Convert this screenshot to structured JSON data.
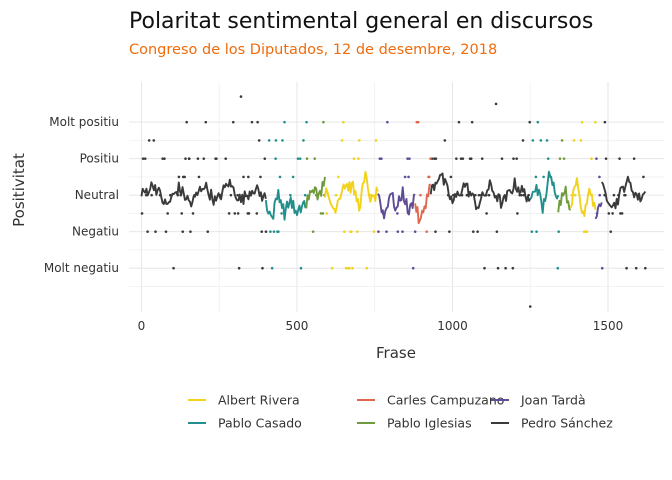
{
  "chart_data": {
    "type": "line",
    "title": "Polaritat sentimental general en discursos",
    "subtitle": "Congreso de los Diputados, 12 de desembre, 2018",
    "xlabel": "Frase",
    "ylabel": "Positivitat",
    "xlim": [
      -40,
      1680
    ],
    "ylim": [
      -3.2,
      3.1
    ],
    "x_ticks": [
      0,
      500,
      1000,
      1500
    ],
    "y_ticks": [
      {
        "value": 2,
        "label": "Molt positiu"
      },
      {
        "value": 1,
        "label": "Positiu"
      },
      {
        "value": 0,
        "label": "Neutral"
      },
      {
        "value": -1,
        "label": "Negatiu"
      },
      {
        "value": -2,
        "label": "Molt negatiu"
      }
    ],
    "grid": true,
    "legend_position": "bottom",
    "legend_entries": [
      "Albert Rivera",
      "Carles Campuzano",
      "Joan Tardà",
      "Pablo Casado",
      "Pablo Iglesias",
      "Pedro Sánchez"
    ],
    "series": [
      {
        "name": "Pedro Sánchez",
        "color": "#3a3a3a",
        "segments": [
          [
            0,
            400
          ],
          [
            930,
            1250
          ],
          [
            1480,
            1620
          ]
        ],
        "moving_average": [
          [
            0,
            0
          ],
          [
            40,
            0.3
          ],
          [
            80,
            -0.3
          ],
          [
            120,
            0.2
          ],
          [
            160,
            -0.25
          ],
          [
            200,
            0.3
          ],
          [
            240,
            -0.2
          ],
          [
            280,
            0.35
          ],
          [
            320,
            -0.15
          ],
          [
            360,
            0.2
          ],
          [
            400,
            -0.1
          ],
          [
            930,
            0.1
          ],
          [
            960,
            0.6
          ],
          [
            1000,
            -0.2
          ],
          [
            1040,
            0.3
          ],
          [
            1080,
            -0.3
          ],
          [
            1120,
            0.25
          ],
          [
            1160,
            -0.25
          ],
          [
            1200,
            0.3
          ],
          [
            1250,
            -0.1
          ],
          [
            1480,
            0.2
          ],
          [
            1520,
            -0.3
          ],
          [
            1560,
            0.4
          ],
          [
            1600,
            -0.1
          ],
          [
            1620,
            0.1
          ]
        ]
      },
      {
        "name": "Pablo Casado",
        "color": "#21908d",
        "segments": [
          [
            400,
            530
          ],
          [
            1250,
            1340
          ]
        ],
        "moving_average": [
          [
            400,
            -0.2
          ],
          [
            420,
            -0.65
          ],
          [
            440,
            0.1
          ],
          [
            460,
            -0.5
          ],
          [
            480,
            -0.1
          ],
          [
            500,
            -0.6
          ],
          [
            520,
            -0.2
          ],
          [
            530,
            -0.3
          ],
          [
            1250,
            -0.2
          ],
          [
            1270,
            0.3
          ],
          [
            1290,
            -0.4
          ],
          [
            1310,
            0.5
          ],
          [
            1340,
            0.0
          ]
        ]
      },
      {
        "name": "Pablo Iglesias",
        "color": "#6f9a3d",
        "segments": [
          [
            530,
            590
          ],
          [
            1340,
            1380
          ]
        ],
        "moving_average": [
          [
            530,
            -0.2
          ],
          [
            550,
            0.3
          ],
          [
            570,
            -0.1
          ],
          [
            590,
            0.5
          ],
          [
            1340,
            -0.3
          ],
          [
            1360,
            0.2
          ],
          [
            1380,
            -0.4
          ]
        ]
      },
      {
        "name": "Albert Rivera",
        "color": "#f2d21b",
        "segments": [
          [
            590,
            760
          ],
          [
            1380,
            1460
          ]
        ],
        "moving_average": [
          [
            590,
            0.1
          ],
          [
            620,
            -0.4
          ],
          [
            650,
            0.3
          ],
          [
            680,
            0.2
          ],
          [
            700,
            -0.3
          ],
          [
            720,
            0.5
          ],
          [
            740,
            -0.2
          ],
          [
            760,
            0.1
          ],
          [
            1380,
            -0.3
          ],
          [
            1400,
            0.3
          ],
          [
            1420,
            -0.6
          ],
          [
            1440,
            0.2
          ],
          [
            1460,
            -0.4
          ]
        ]
      },
      {
        "name": "Joan Tardà",
        "color": "#5f4b96",
        "segments": [
          [
            760,
            880
          ],
          [
            1460,
            1480
          ]
        ],
        "moving_average": [
          [
            760,
            0.1
          ],
          [
            780,
            -0.6
          ],
          [
            800,
            0.1
          ],
          [
            820,
            -0.4
          ],
          [
            840,
            0.1
          ],
          [
            860,
            -0.5
          ],
          [
            880,
            0.0
          ],
          [
            1460,
            -0.5
          ],
          [
            1480,
            -0.2
          ]
        ]
      },
      {
        "name": "Carles Campuzano",
        "color": "#e0674f",
        "segments": [
          [
            880,
            930
          ]
        ],
        "moving_average": [
          [
            880,
            -0.2
          ],
          [
            895,
            -0.8
          ],
          [
            910,
            -0.3
          ],
          [
            930,
            0.3
          ]
        ]
      }
    ],
    "outlier_points": [
      [
        320,
        2.7
      ],
      [
        1140,
        2.5
      ],
      [
        1250,
        -3.05
      ]
    ]
  }
}
